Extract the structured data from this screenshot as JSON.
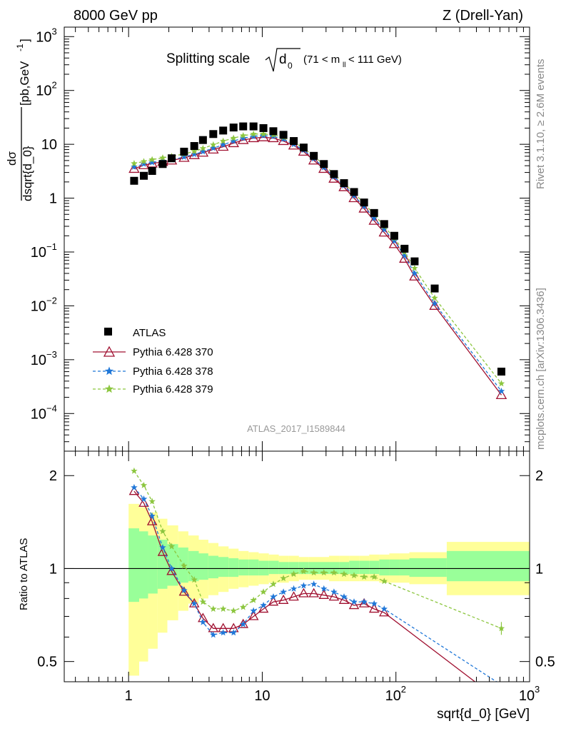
{
  "header": {
    "left": "8000 GeV pp",
    "right": "Z (Drell-Yan)"
  },
  "side_labels": {
    "rivet": "Rivet 3.1.10, ≥ 2.6M events",
    "mcplots": "mcplots.cern.ch [arXiv:1306.3436]"
  },
  "chart_data": [
    {
      "type": "scatter",
      "title": "Splitting scale √d₀ (71 < m_ll < 111 GeV)",
      "title_main": "Splitting scale",
      "title_symbol": "d",
      "title_sub": "0",
      "title_range_pre": "(71 < m",
      "title_range_sub": "ll",
      "title_range_post": " < 111 GeV)",
      "analysis_label": "ATLAS_2017_I1589844",
      "xlabel": "sqrt{d_0} [GeV]",
      "ylabel": "dσ / dsqrt{d_0} [pb,GeV⁻¹]",
      "ylabel_num": "dσ",
      "ylabel_den": "dsqrt{d_0}",
      "ylabel_unit": "[pb,GeV",
      "ylabel_unit_exp": "-1",
      "ylabel_unit_end": "]",
      "x_scale": "log",
      "y_scale": "log",
      "xlim": [
        0.33,
        1000
      ],
      "ylim": [
        2e-05,
        1500
      ],
      "y_ticks": [
        {
          "value": 1000,
          "base": "10",
          "exp": "3"
        },
        {
          "value": 100,
          "base": "10",
          "exp": "2"
        },
        {
          "value": 10,
          "base": "10",
          "exp": ""
        },
        {
          "value": 1,
          "base": "1",
          "exp": ""
        },
        {
          "value": 0.1,
          "base": "10",
          "exp": "−1"
        },
        {
          "value": 0.01,
          "base": "10",
          "exp": "−2"
        },
        {
          "value": 0.001,
          "base": "10",
          "exp": "−3"
        },
        {
          "value": 0.0001,
          "base": "10",
          "exp": "−4"
        }
      ],
      "x_ticks": [
        {
          "value": 1,
          "base": "1",
          "exp": ""
        },
        {
          "value": 10,
          "base": "10",
          "exp": ""
        },
        {
          "value": 100,
          "base": "10",
          "exp": "2"
        },
        {
          "value": 1000,
          "base": "10",
          "exp": "3"
        }
      ],
      "legend_position": "lower-left",
      "x": [
        1.1,
        1.3,
        1.5,
        1.8,
        2.1,
        2.6,
        3.1,
        3.6,
        4.3,
        5.1,
        6.1,
        7.2,
        8.6,
        10.2,
        12.1,
        14.4,
        17.2,
        20.4,
        24.3,
        28.9,
        34.4,
        40.9,
        48.6,
        57.8,
        68.7,
        81.7,
        97.2,
        116,
        138,
        195,
        615
      ],
      "series": [
        {
          "name": "ATLAS",
          "marker": "square",
          "color": "#000000",
          "values": [
            2.1,
            2.6,
            3.2,
            4.3,
            5.5,
            7.3,
            9.3,
            12.0,
            15.5,
            18.0,
            20.5,
            21.5,
            21.5,
            20.0,
            17.5,
            15.0,
            11.5,
            8.7,
            6.1,
            4.3,
            2.8,
            1.9,
            1.3,
            0.83,
            0.53,
            0.33,
            0.2,
            0.115,
            0.067,
            0.021,
            0.0006
          ]
        },
        {
          "name": "Pythia 6.428 370",
          "marker": "open-triangle",
          "line": "solid",
          "color": "#a01030",
          "values": [
            3.5,
            4.1,
            4.4,
            4.7,
            5.0,
            5.6,
            6.3,
            7.0,
            8.0,
            9.0,
            10.5,
            12.0,
            13.0,
            13.5,
            13.0,
            11.5,
            9.5,
            7.3,
            5.0,
            3.5,
            2.3,
            1.6,
            1.0,
            0.64,
            0.38,
            0.23,
            0.14,
            0.075,
            0.035,
            0.01,
            0.00022
          ]
        },
        {
          "name": "Pythia 6.428 378",
          "marker": "star",
          "line": "dashed",
          "color": "#1f77d8",
          "values": [
            3.8,
            4.3,
            4.6,
            4.9,
            5.2,
            5.8,
            6.5,
            7.3,
            8.5,
            9.8,
            11.5,
            13.0,
            14.0,
            14.5,
            14.0,
            12.5,
            10.0,
            7.8,
            5.4,
            3.7,
            2.5,
            1.7,
            1.1,
            0.7,
            0.42,
            0.26,
            0.16,
            0.085,
            0.04,
            0.011,
            0.00026
          ]
        },
        {
          "name": "Pythia 6.428 379",
          "marker": "star",
          "line": "dashed",
          "color": "#8cc63f",
          "values": [
            4.4,
            4.8,
            5.2,
            5.6,
            6.0,
            6.6,
            7.4,
            8.4,
            9.8,
            11.5,
            13.0,
            14.5,
            15.5,
            15.5,
            15.0,
            13.5,
            11.0,
            8.5,
            6.0,
            4.2,
            2.8,
            1.9,
            1.25,
            0.8,
            0.5,
            0.3,
            0.18,
            0.1,
            0.05,
            0.014,
            0.00036
          ]
        }
      ]
    },
    {
      "type": "line",
      "ylabel": "Ratio to ATLAS",
      "x_scale": "log",
      "y_scale": "log",
      "xlim": [
        0.33,
        1000
      ],
      "ylim": [
        0.43,
        2.4
      ],
      "y_ticks": [
        {
          "value": 2,
          "label": "2"
        },
        {
          "value": 1,
          "label": "1"
        },
        {
          "value": 0.5,
          "label": "0.5"
        }
      ],
      "reference_line": 1,
      "uncertainty_bands": {
        "colors": {
          "outer": "#ffff99",
          "inner": "#99ff99"
        },
        "bin_edges": [
          1,
          1.2,
          1.4,
          1.65,
          1.95,
          2.35,
          2.8,
          3.35,
          3.95,
          4.7,
          5.6,
          6.65,
          7.9,
          9.4,
          11.2,
          13.3,
          15.8,
          18.8,
          22.3,
          26.6,
          31.6,
          37.6,
          44.7,
          53.1,
          63.1,
          75,
          89.2,
          106,
          126,
          240,
          1000
        ],
        "outer": [
          [
            0.45,
            1.62
          ],
          [
            0.5,
            1.58
          ],
          [
            0.55,
            1.52
          ],
          [
            0.62,
            1.45
          ],
          [
            0.68,
            1.38
          ],
          [
            0.73,
            1.32
          ],
          [
            0.77,
            1.28
          ],
          [
            0.8,
            1.24
          ],
          [
            0.82,
            1.21
          ],
          [
            0.84,
            1.18
          ],
          [
            0.86,
            1.16
          ],
          [
            0.87,
            1.14
          ],
          [
            0.88,
            1.13
          ],
          [
            0.89,
            1.12
          ],
          [
            0.9,
            1.11
          ],
          [
            0.9,
            1.1
          ],
          [
            0.91,
            1.1
          ],
          [
            0.92,
            1.09
          ],
          [
            0.92,
            1.09
          ],
          [
            0.92,
            1.09
          ],
          [
            0.91,
            1.1
          ],
          [
            0.91,
            1.1
          ],
          [
            0.91,
            1.1
          ],
          [
            0.91,
            1.1
          ],
          [
            0.91,
            1.11
          ],
          [
            0.9,
            1.11
          ],
          [
            0.9,
            1.12
          ],
          [
            0.9,
            1.12
          ],
          [
            0.89,
            1.13
          ],
          [
            0.82,
            1.22
          ]
        ],
        "inner": [
          [
            0.78,
            1.35
          ],
          [
            0.8,
            1.32
          ],
          [
            0.83,
            1.28
          ],
          [
            0.86,
            1.24
          ],
          [
            0.88,
            1.2
          ],
          [
            0.9,
            1.17
          ],
          [
            0.91,
            1.14
          ],
          [
            0.92,
            1.12
          ],
          [
            0.93,
            1.1
          ],
          [
            0.94,
            1.09
          ],
          [
            0.94,
            1.08
          ],
          [
            0.95,
            1.07
          ],
          [
            0.95,
            1.07
          ],
          [
            0.95,
            1.06
          ],
          [
            0.96,
            1.06
          ],
          [
            0.96,
            1.05
          ],
          [
            0.96,
            1.05
          ],
          [
            0.96,
            1.05
          ],
          [
            0.96,
            1.05
          ],
          [
            0.96,
            1.05
          ],
          [
            0.96,
            1.05
          ],
          [
            0.96,
            1.05
          ],
          [
            0.96,
            1.06
          ],
          [
            0.96,
            1.06
          ],
          [
            0.96,
            1.06
          ],
          [
            0.95,
            1.07
          ],
          [
            0.95,
            1.07
          ],
          [
            0.95,
            1.07
          ],
          [
            0.94,
            1.08
          ],
          [
            0.91,
            1.14
          ]
        ]
      },
      "x": [
        1.1,
        1.3,
        1.5,
        1.8,
        2.1,
        2.6,
        3.1,
        3.6,
        4.3,
        5.1,
        6.1,
        7.2,
        8.6,
        10.2,
        12.1,
        14.4,
        17.2,
        20.4,
        24.3,
        28.9,
        34.4,
        40.9,
        48.6,
        57.8,
        68.7,
        81.7,
        615
      ],
      "series": [
        {
          "name": "Pythia 6.428 370",
          "marker": "open-triangle",
          "line": "solid",
          "color": "#a01030",
          "values": [
            1.78,
            1.63,
            1.42,
            1.13,
            0.98,
            0.84,
            0.77,
            0.69,
            0.64,
            0.64,
            0.64,
            0.66,
            0.7,
            0.74,
            0.78,
            0.79,
            0.81,
            0.83,
            0.83,
            0.82,
            0.81,
            0.79,
            0.76,
            0.77,
            0.74,
            0.72,
            0.37
          ]
        },
        {
          "name": "Pythia 6.428 378",
          "marker": "star",
          "line": "dashed",
          "color": "#1f77d8",
          "values": [
            1.83,
            1.68,
            1.48,
            1.17,
            1.0,
            0.85,
            0.77,
            0.67,
            0.61,
            0.62,
            0.62,
            0.66,
            0.73,
            0.76,
            0.81,
            0.84,
            0.86,
            0.88,
            0.89,
            0.86,
            0.84,
            0.81,
            0.78,
            0.78,
            0.77,
            0.74,
            0.42
          ]
        },
        {
          "name": "Pythia 6.428 379",
          "marker": "star",
          "line": "dashed",
          "color": "#8cc63f",
          "values": [
            2.07,
            1.86,
            1.65,
            1.32,
            1.18,
            1.02,
            0.92,
            0.78,
            0.74,
            0.74,
            0.73,
            0.75,
            0.79,
            0.84,
            0.89,
            0.93,
            0.96,
            0.98,
            0.97,
            0.97,
            0.97,
            0.96,
            0.95,
            0.94,
            0.94,
            0.91,
            0.64
          ]
        }
      ]
    }
  ]
}
